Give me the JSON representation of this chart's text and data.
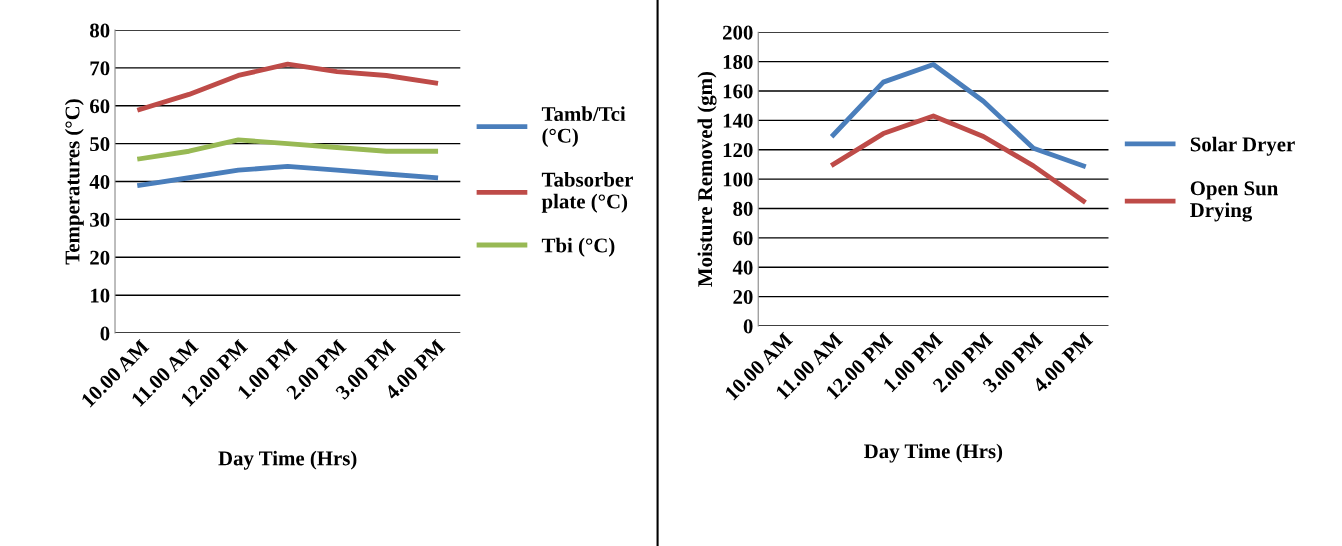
{
  "chart_data": [
    {
      "type": "line",
      "xlabel": "Day Time (Hrs)",
      "ylabel": "Temperatures (°C)",
      "categories": [
        "10.00 AM",
        "11.00 AM",
        "12.00 PM",
        "1.00 PM",
        "2.00 PM",
        "3.00 PM",
        "4.00 PM"
      ],
      "ylim": [
        0,
        80
      ],
      "yticks": [
        0,
        10,
        20,
        30,
        40,
        50,
        60,
        70,
        80
      ],
      "grid": "y",
      "legend": "right",
      "series": [
        {
          "name": "Tamb/Tci\n(°C)",
          "color": "#4a7ebb",
          "values": [
            39,
            41,
            43,
            44,
            43,
            42,
            41
          ]
        },
        {
          "name": "Tabsorber\nplate (°C)",
          "color": "#be4b48",
          "values": [
            59,
            63,
            68,
            71,
            69,
            68,
            66
          ]
        },
        {
          "name": "Tbi (°C)",
          "color": "#98b954",
          "values": [
            46,
            48,
            51,
            50,
            49,
            48,
            48
          ]
        }
      ]
    },
    {
      "type": "line",
      "xlabel": "Day Time (Hrs)",
      "ylabel": "Moisture Removed (gm)",
      "categories": [
        "10.00 AM",
        "11.00 AM",
        "12.00 PM",
        "1.00 PM",
        "2.00 PM",
        "3.00 PM",
        "4.00 PM"
      ],
      "ylim": [
        0,
        200
      ],
      "yticks": [
        0,
        20,
        40,
        60,
        80,
        100,
        120,
        140,
        160,
        180,
        200
      ],
      "grid": "y",
      "legend": "right",
      "series": [
        {
          "name": "Solar Dryer",
          "color": "#4a7ebb",
          "values": [
            null,
            130,
            166,
            178,
            153,
            121,
            109
          ]
        },
        {
          "name": "Open Sun\nDrying",
          "color": "#be4b48",
          "values": [
            null,
            110,
            131,
            143,
            129,
            109,
            85
          ]
        }
      ]
    }
  ]
}
